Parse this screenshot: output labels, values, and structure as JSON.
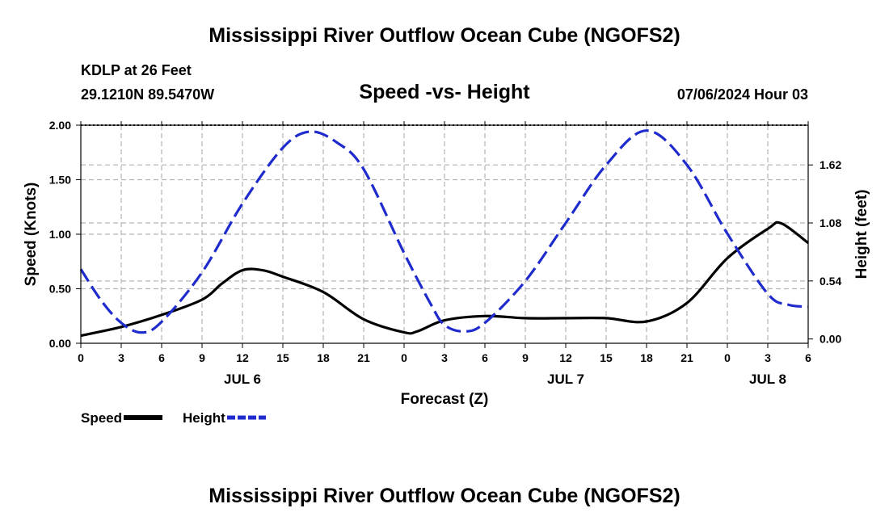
{
  "header": {
    "title": "Mississippi River Outflow Ocean Cube (NGOFS2)",
    "station": "KDLP at 26 Feet",
    "coords": "29.1210N  89.5470W",
    "chart_title": "Speed -vs- Height",
    "datetime": "07/06/2024 Hour 03"
  },
  "footer": {
    "title": "Mississippi River Outflow Ocean Cube (NGOFS2)"
  },
  "legend": {
    "speed_label": "Speed",
    "height_label": "Height"
  },
  "colors": {
    "speed": "#000000",
    "height": "#1f2bcc",
    "grid": "#b4b4b4"
  },
  "chart_data": {
    "type": "line",
    "title": "Speed -vs- Height",
    "xlabel": "Forecast (Z)",
    "ylabel": "Speed (Knots)",
    "y2label": "Height (feet)",
    "xlim": [
      0,
      54
    ],
    "ylim": [
      0,
      2.0
    ],
    "y2lim": [
      -0.04,
      1.99
    ],
    "grid": true,
    "x_ticks": [
      0,
      3,
      6,
      9,
      12,
      15,
      18,
      21,
      24,
      27,
      30,
      33,
      36,
      39,
      42,
      45,
      48,
      51,
      54
    ],
    "x_tick_labels": [
      "0",
      "3",
      "6",
      "9",
      "12",
      "15",
      "18",
      "21",
      "0",
      "3",
      "6",
      "9",
      "12",
      "15",
      "18",
      "21",
      "0",
      "3",
      "6"
    ],
    "day_labels": [
      {
        "x": 12,
        "label": "JUL 6"
      },
      {
        "x": 36,
        "label": "JUL 7"
      },
      {
        "x": 51,
        "label": "JUL 8"
      }
    ],
    "y_ticks": [
      0,
      0.5,
      1.0,
      1.5,
      2.0
    ],
    "y_tick_labels": [
      "0.00",
      "0.50",
      "1.00",
      "1.50",
      "2.00"
    ],
    "y2_ticks": [
      0,
      0.54,
      1.08,
      1.62
    ],
    "y2_tick_labels": [
      "0.00",
      "0.54",
      "1.08",
      "1.62"
    ],
    "series": [
      {
        "name": "Speed",
        "axis": "left",
        "style": "solid",
        "x": [
          0,
          3,
          6,
          9,
          10.5,
          12,
          13.5,
          15,
          18,
          21,
          24,
          25,
          27,
          30,
          33,
          36,
          39,
          42,
          45,
          48,
          51,
          52,
          54
        ],
        "values": [
          0.07,
          0.15,
          0.26,
          0.4,
          0.55,
          0.67,
          0.67,
          0.61,
          0.47,
          0.22,
          0.1,
          0.11,
          0.21,
          0.25,
          0.23,
          0.23,
          0.23,
          0.2,
          0.37,
          0.78,
          1.05,
          1.1,
          0.92
        ]
      },
      {
        "name": "Height",
        "axis": "right",
        "style": "dashed",
        "x": [
          0,
          1.5,
          3,
          4.5,
          6,
          9,
          12,
          15,
          17,
          19,
          21,
          24,
          26,
          27,
          28.5,
          30,
          33,
          36,
          39,
          42,
          45,
          48,
          51,
          52.5,
          54
        ],
        "values": [
          0.65,
          0.36,
          0.15,
          0.06,
          0.16,
          0.62,
          1.26,
          1.78,
          1.93,
          1.83,
          1.58,
          0.8,
          0.32,
          0.13,
          0.07,
          0.15,
          0.54,
          1.08,
          1.62,
          1.94,
          1.62,
          0.98,
          0.42,
          0.32,
          0.3
        ]
      }
    ]
  }
}
